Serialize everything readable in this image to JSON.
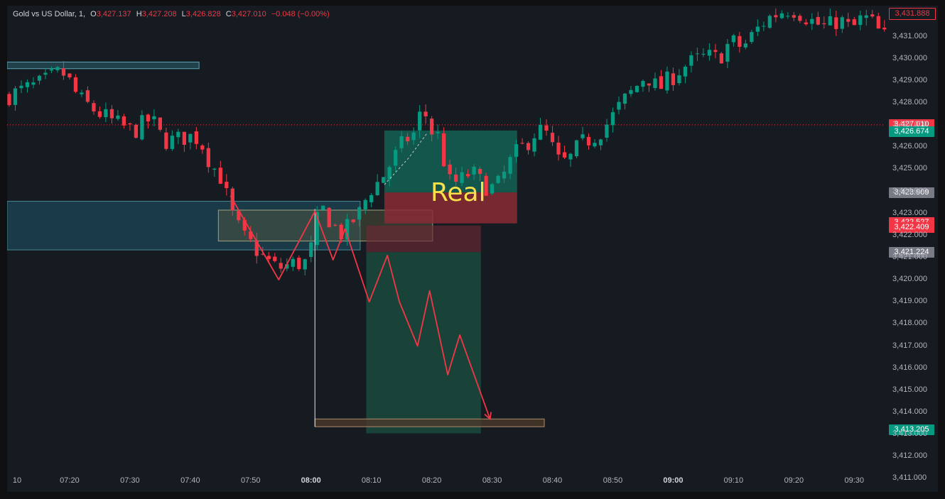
{
  "header": {
    "symbol": "Gold vs US Dollar, 1,",
    "o_label": "O",
    "o_value": "3,427.137",
    "h_label": "H",
    "h_value": "3,427.208",
    "l_label": "L",
    "l_value": "3,426.828",
    "c_label": "C",
    "c_value": "3,427.010",
    "change": "−0.048 (−0.00%)"
  },
  "annotation": {
    "label": "Real"
  },
  "colors": {
    "up": "#089981",
    "down": "#f23645",
    "bg": "#151b20",
    "arrow": "#f23645",
    "label": "#f7e04b"
  },
  "price_tags": [
    {
      "text": "3,431.888",
      "price": 3431.888,
      "style": "outline"
    },
    {
      "text": "3,427.010",
      "price": 3427.01,
      "style": "red"
    },
    {
      "text": "3,426.674",
      "price": 3426.674,
      "style": "green"
    },
    {
      "text": "3,423.909",
      "price": 3423.909,
      "style": "gray"
    },
    {
      "text": "3,422.527",
      "price": 3422.527,
      "style": "red"
    },
    {
      "text": "3,422.409",
      "price": 3422.409,
      "style": "red"
    },
    {
      "text": "3,421.224",
      "price": 3421.224,
      "style": "gray"
    },
    {
      "text": "3,413.205",
      "price": 3413.205,
      "style": "green"
    }
  ],
  "chart_data": {
    "type": "candlestick",
    "title": "Gold vs US Dollar, 1",
    "ylim": [
      3410.4,
      3432.4
    ],
    "y_ticks": [
      "3,431.000",
      "3,430.000",
      "3,429.000",
      "3,428.000",
      "3,427.000",
      "3,426.000",
      "3,425.000",
      "3,424.000",
      "3,423.000",
      "3,422.000",
      "3,421.000",
      "3,420.000",
      "3,419.000",
      "3,418.000",
      "3,417.000",
      "3,416.000",
      "3,415.000",
      "3,414.000",
      "3,413.000",
      "3,412.000",
      "3,411.000"
    ],
    "x_ticks": [
      {
        "label": "10",
        "minute": 10
      },
      {
        "label": "07:20",
        "minute": 20
      },
      {
        "label": "07:30",
        "minute": 30
      },
      {
        "label": "07:40",
        "minute": 40
      },
      {
        "label": "07:50",
        "minute": 50
      },
      {
        "label": "08:00",
        "minute": 60,
        "bold": true
      },
      {
        "label": "08:10",
        "minute": 70
      },
      {
        "label": "08:20",
        "minute": 80
      },
      {
        "label": "08:30",
        "minute": 90
      },
      {
        "label": "08:40",
        "minute": 100
      },
      {
        "label": "08:50",
        "minute": 110
      },
      {
        "label": "09:00",
        "minute": 120,
        "bold": true
      },
      {
        "label": "09:10",
        "minute": 130
      },
      {
        "label": "09:20",
        "minute": 140
      },
      {
        "label": "09:30",
        "minute": 150
      }
    ],
    "close_path": [
      [
        10,
        3428.3
      ],
      [
        13,
        3428.6
      ],
      [
        16,
        3428.9
      ],
      [
        19,
        3429.4
      ],
      [
        20,
        3429.2
      ],
      [
        22,
        3428.2
      ],
      [
        25,
        3427.6
      ],
      [
        28,
        3427.1
      ],
      [
        31,
        3426.7
      ],
      [
        34,
        3427.3
      ],
      [
        36,
        3426.3
      ],
      [
        38,
        3426.3
      ],
      [
        40,
        3426.5
      ],
      [
        42,
        3426.4
      ],
      [
        44,
        3425.2
      ],
      [
        46,
        3424.5
      ],
      [
        47,
        3423.1
      ],
      [
        48,
        3422.7
      ],
      [
        49,
        3422.0
      ],
      [
        51,
        3421.5
      ],
      [
        53,
        3420.9
      ],
      [
        55,
        3420.5
      ],
      [
        57,
        3420.7
      ],
      [
        60,
        3420.8
      ],
      [
        61,
        3422.0
      ],
      [
        62,
        3423.3
      ],
      [
        63,
        3423.0
      ],
      [
        64,
        3422.5
      ],
      [
        65,
        3422.2
      ],
      [
        66,
        3422.0
      ],
      [
        67,
        3422.6
      ],
      [
        68,
        3422.8
      ],
      [
        69,
        3423.2
      ],
      [
        70,
        3424.0
      ],
      [
        72,
        3424.5
      ],
      [
        74,
        3425.4
      ],
      [
        76,
        3426.3
      ],
      [
        78,
        3426.7
      ],
      [
        79,
        3428.1
      ],
      [
        80,
        3426.8
      ],
      [
        82,
        3426.4
      ],
      [
        83,
        3424.4
      ],
      [
        85,
        3424.4
      ],
      [
        87,
        3424.9
      ],
      [
        89,
        3424.3
      ],
      [
        91,
        3424.1
      ],
      [
        92,
        3424.5
      ],
      [
        94,
        3425.6
      ],
      [
        96,
        3426.1
      ],
      [
        98,
        3426.8
      ],
      [
        100,
        3426.5
      ],
      [
        101,
        3425.4
      ],
      [
        103,
        3425.3
      ],
      [
        105,
        3426.1
      ],
      [
        108,
        3426.6
      ],
      [
        110,
        3427.2
      ],
      [
        112,
        3428.0
      ],
      [
        114,
        3428.6
      ],
      [
        116,
        3429.3
      ],
      [
        118,
        3428.6
      ],
      [
        120,
        3429.1
      ],
      [
        122,
        3429.6
      ],
      [
        124,
        3429.9
      ],
      [
        126,
        3430.1
      ],
      [
        128,
        3430.0
      ],
      [
        130,
        3430.8
      ],
      [
        132,
        3430.5
      ],
      [
        134,
        3431.2
      ],
      [
        136,
        3431.8
      ],
      [
        138,
        3432.1
      ],
      [
        140,
        3432.3
      ],
      [
        142,
        3432.0
      ],
      [
        144,
        3431.6
      ],
      [
        146,
        3431.4
      ],
      [
        148,
        3431.8
      ],
      [
        150,
        3431.3
      ],
      [
        152,
        3431.9
      ],
      [
        154,
        3431.5
      ],
      [
        155,
        3431.0
      ]
    ],
    "zones": [
      {
        "name": "zone-top-left",
        "x0": 10,
        "x1": 41.8,
        "y0": 3429.55,
        "y1": 3429.85,
        "fill": "#2a5f6e",
        "opacity": 0.55,
        "stroke": "#5fa3b3"
      },
      {
        "name": "zone-demand-large",
        "x0": 10,
        "x1": 68.5,
        "y0": 3421.35,
        "y1": 3423.55,
        "fill": "#1b4b5a",
        "opacity": 0.65,
        "stroke": "#4a8797"
      },
      {
        "name": "zone-inner-olive",
        "x0": 45,
        "x1": 80.5,
        "y0": 3421.75,
        "y1": 3423.15,
        "fill": "#5a5a40",
        "opacity": 0.45,
        "stroke": "#a0a080"
      },
      {
        "name": "zone-red-lower",
        "x0": 69.5,
        "x1": 88.5,
        "y0": 3421.25,
        "y1": 3422.45,
        "fill": "#6b2a35",
        "opacity": 0.65,
        "stroke": "none"
      },
      {
        "name": "zone-green-tall",
        "x0": 69.5,
        "x1": 88.5,
        "y0": 3413.05,
        "y1": 3421.25,
        "fill": "#1a4a3e",
        "opacity": 0.85,
        "stroke": "none"
      },
      {
        "name": "zone-target-top",
        "x0": 72.5,
        "x1": 94.5,
        "y0": 3423.95,
        "y1": 3426.75,
        "fill": "#12876f",
        "opacity": 0.55,
        "stroke": "none"
      },
      {
        "name": "zone-stop-red",
        "x0": 72.5,
        "x1": 94.5,
        "y0": 3422.55,
        "y1": 3423.95,
        "fill": "#8a2a35",
        "opacity": 0.85,
        "stroke": "none"
      },
      {
        "name": "zone-target-bottom",
        "x0": 61,
        "x1": 99,
        "y0": 3413.35,
        "y1": 3413.7,
        "fill": "#4a3a2a",
        "opacity": 0.8,
        "stroke": "#b08a6a"
      }
    ],
    "pattern_path": [
      [
        47,
        3423.8
      ],
      [
        55,
        3420.0
      ],
      [
        61,
        3423.1
      ],
      [
        64,
        3420.9
      ],
      [
        66,
        3422.3
      ],
      [
        70,
        3419.0
      ],
      [
        73,
        3421.1
      ],
      [
        75,
        3419.0
      ],
      [
        78,
        3417.0
      ],
      [
        80,
        3419.5
      ],
      [
        83,
        3415.7
      ],
      [
        85,
        3417.5
      ],
      [
        90,
        3413.7
      ]
    ],
    "dashed_path": [
      [
        72.5,
        3424.3
      ],
      [
        76.5,
        3425.5
      ],
      [
        79.5,
        3426.6
      ]
    ],
    "vertical_marker": {
      "x": 61,
      "y0": 3423.2,
      "y1": 3413.35
    }
  }
}
